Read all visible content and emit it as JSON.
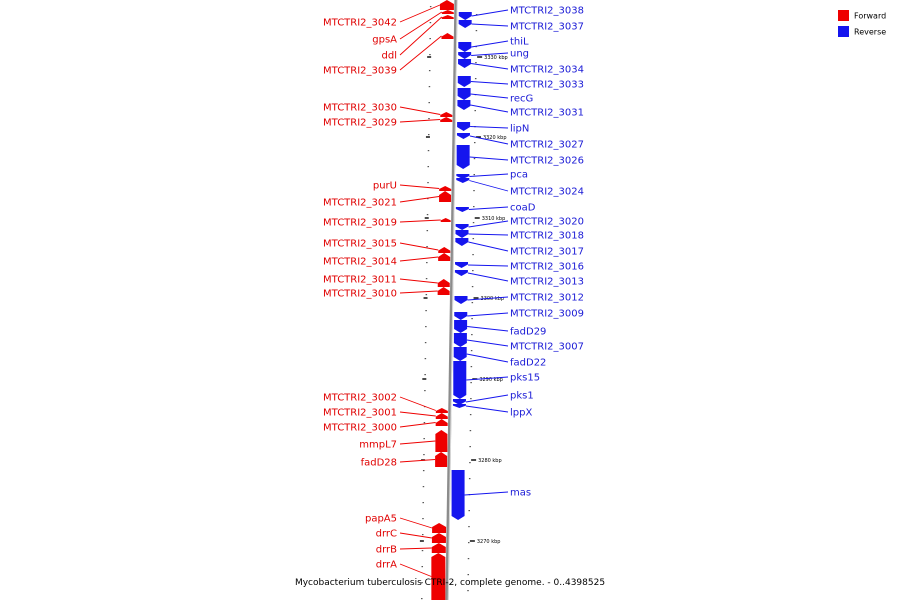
{
  "colors": {
    "forward": "#ee0000",
    "reverse": "#1515ee",
    "axis": "#9a9a9a"
  },
  "legend": [
    {
      "label": "Forward",
      "color": "#ee0000"
    },
    {
      "label": "Reverse",
      "color": "#1515ee"
    }
  ],
  "caption": "Mycobacterium tuberculosis CTRI-2, complete genome. - 0..4398525",
  "ticks": [
    "3330 kbp",
    "3320 kbp",
    "3310 kbp",
    "3300 kbp",
    "3290 kbp",
    "3280 kbp",
    "3270 kbp"
  ],
  "forward_genes": [
    "MTCTRI2_3042",
    "gpsA",
    "ddl",
    "MTCTRI2_3039",
    "MTCTRI2_3030",
    "MTCTRI2_3029",
    "purU",
    "MTCTRI2_3021",
    "MTCTRI2_3019",
    "MTCTRI2_3015",
    "MTCTRI2_3014",
    "MTCTRI2_3011",
    "MTCTRI2_3010",
    "MTCTRI2_3002",
    "MTCTRI2_3001",
    "MTCTRI2_3000",
    "mmpL7",
    "fadD28",
    "papA5",
    "drrC",
    "drrB",
    "drrA"
  ],
  "reverse_genes": [
    "MTCTRI2_3038",
    "MTCTRI2_3037",
    "thiL",
    "ung",
    "MTCTRI2_3034",
    "MTCTRI2_3033",
    "recG",
    "MTCTRI2_3031",
    "lipN",
    "MTCTRI2_3027",
    "MTCTRI2_3026",
    "pca",
    "MTCTRI2_3024",
    "coaD",
    "MTCTRI2_3020",
    "MTCTRI2_3018",
    "MTCTRI2_3017",
    "MTCTRI2_3016",
    "MTCTRI2_3013",
    "MTCTRI2_3012",
    "MTCTRI2_3009",
    "fadD29",
    "MTCTRI2_3007",
    "fadD22",
    "pks15",
    "pks1",
    "lppX",
    "mas"
  ]
}
